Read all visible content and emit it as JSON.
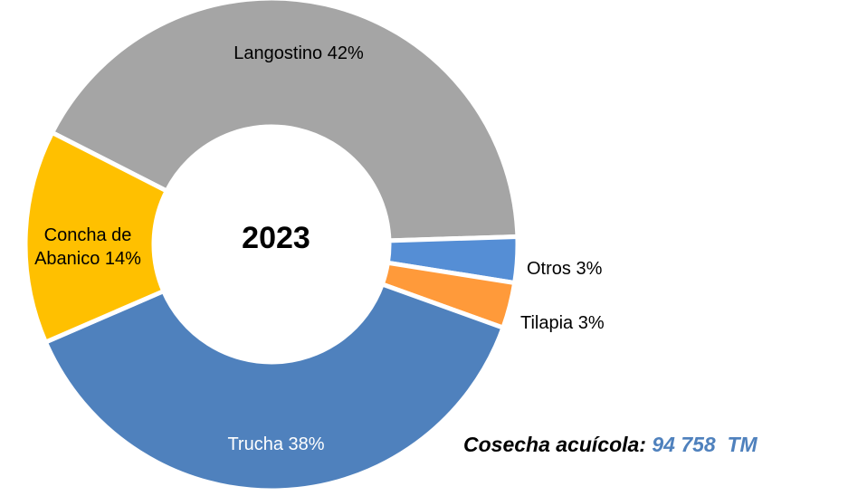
{
  "chart_data": {
    "type": "donut",
    "center_label": "2023",
    "categories": [
      "Langostino",
      "Otros",
      "Tilapia",
      "Trucha",
      "Concha de Abanico"
    ],
    "values": [
      42,
      3,
      3,
      38,
      14
    ],
    "value_labels": [
      "42%",
      "3%",
      "3%",
      "38%",
      "14%"
    ],
    "colors": [
      "#a5a5a5",
      "#558ed5",
      "#ff9a3a",
      "#4f81bd",
      "#ffc000"
    ],
    "annotation": {
      "text": "Cosecha acuícola:",
      "value": "94 758  TM"
    }
  }
}
